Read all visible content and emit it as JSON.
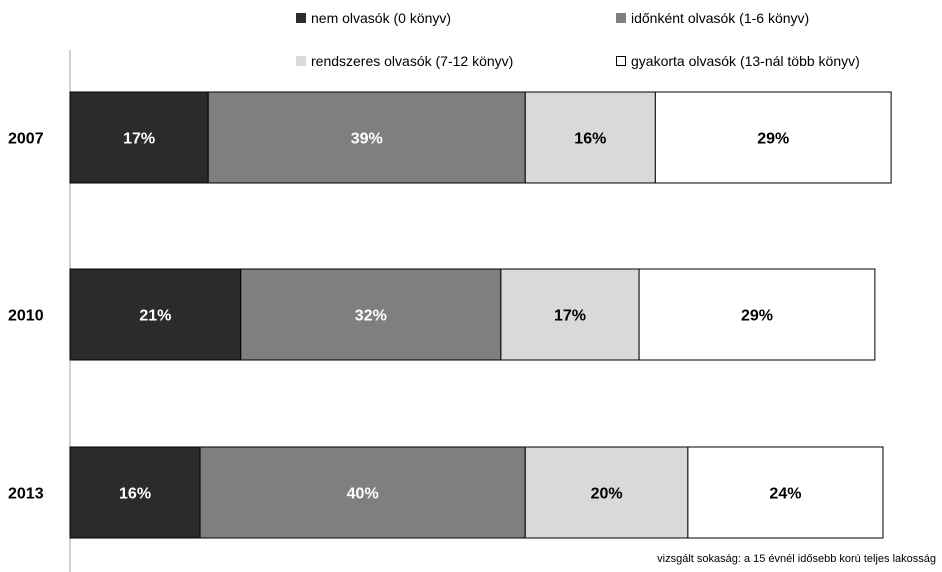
{
  "chart_data": {
    "type": "bar",
    "orientation": "horizontal",
    "stacked": true,
    "categories": [
      "2007",
      "2010",
      "2013"
    ],
    "series": [
      {
        "name": "nem olvasók (0 könyv)",
        "values": [
          17,
          21,
          16
        ],
        "labels": [
          "17%",
          "21%",
          "16%"
        ],
        "color": "#2b2b2b",
        "label_color": "#ffffff"
      },
      {
        "name": "időnként olvasók (1-6 könyv)",
        "values": [
          39,
          32,
          40
        ],
        "labels": [
          "39%",
          "32%",
          "40%"
        ],
        "color": "#7f7f7f",
        "label_color": "#ffffff"
      },
      {
        "name": "rendszeres olvasók (7-12 könyv)",
        "values": [
          16,
          17,
          20
        ],
        "labels": [
          "16%",
          "17%",
          "20%"
        ],
        "color": "#d9d9d9",
        "label_color": "#000000"
      },
      {
        "name": "gyakorta olvasók (13-nál több könyv)",
        "values": [
          29,
          29,
          24
        ],
        "labels": [
          "29%",
          "29%",
          "24%"
        ],
        "color": "#ffffff",
        "label_color": "#000000"
      }
    ],
    "legend_position": "top-right",
    "grid": false
  },
  "footnote": "vizsgált sokaság: a 15  évnél idősebb korú teljes lakosság"
}
